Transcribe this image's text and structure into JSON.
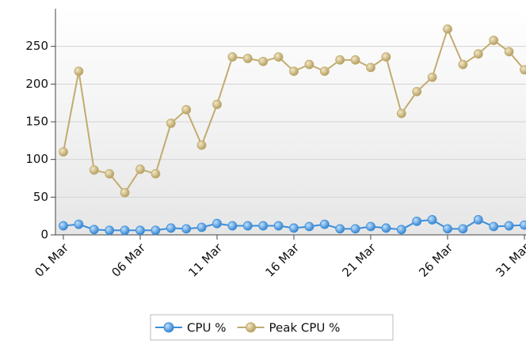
{
  "chart_data": {
    "type": "line",
    "categories": [
      "01 Mar",
      null,
      null,
      null,
      null,
      "06 Mar",
      null,
      null,
      null,
      null,
      "11 Mar",
      null,
      null,
      null,
      null,
      "16 Mar",
      null,
      null,
      null,
      null,
      "21 Mar",
      null,
      null,
      null,
      null,
      "26 Mar",
      null,
      null,
      null,
      null,
      "31 Mar"
    ],
    "series": [
      {
        "name": "CPU %",
        "color": "#3a8edb",
        "values": [
          12,
          14,
          7,
          6,
          6,
          6,
          6,
          9,
          8,
          10,
          15,
          12,
          12,
          12,
          12,
          9,
          11,
          14,
          8,
          8,
          11,
          9,
          7,
          18,
          20,
          8,
          8,
          20,
          11,
          12,
          13
        ]
      },
      {
        "name": "Peak CPU %",
        "color": "#c2ab6e",
        "values": [
          110,
          217,
          86,
          81,
          56,
          87,
          81,
          148,
          166,
          119,
          173,
          236,
          234,
          230,
          236,
          217,
          226,
          217,
          232,
          232,
          222,
          236,
          161,
          190,
          209,
          273,
          226,
          240,
          258,
          243,
          219
        ]
      }
    ],
    "ylim": [
      0,
      300
    ],
    "yticks": [
      0,
      50,
      100,
      150,
      200,
      250
    ],
    "grid": true,
    "legend": "bottom"
  }
}
